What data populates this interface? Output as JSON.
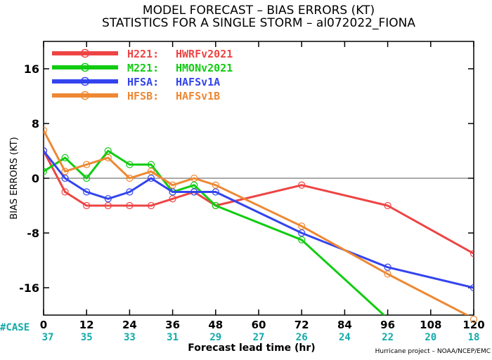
{
  "chart_data": {
    "type": "line",
    "title": "MODEL FORECAST – BIAS ERRORS (KT)",
    "subtitle": "STATISTICS FOR A SINGLE STORM – al072022_FIONA",
    "xlabel": "Forecast lead time (hr)",
    "ylabel": "BIAS ERRORS (KT)",
    "xlim": [
      0,
      120
    ],
    "ylim": [
      -20,
      20
    ],
    "xticks": [
      0,
      12,
      24,
      36,
      48,
      60,
      72,
      84,
      96,
      108,
      120
    ],
    "yticks": [
      -16,
      -8,
      0,
      8,
      16
    ],
    "grid": false,
    "zero_line": true,
    "legend_position": "top-left",
    "case_label": "#CASE",
    "case_lead_times": [
      0,
      12,
      24,
      36,
      48,
      60,
      72,
      84,
      96,
      108,
      120
    ],
    "case_counts": [
      "37",
      "35",
      "33",
      "31",
      "29",
      "27",
      "26",
      "24",
      "22",
      "20",
      "18"
    ],
    "credit": "Hurricane project – NOAA/NCEP/EMC",
    "series": [
      {
        "name": "H221:",
        "label": "HWRFv2021",
        "color": "#ee4444",
        "points": [
          [
            0,
            4
          ],
          [
            6,
            -2
          ],
          [
            12,
            -4
          ],
          [
            18,
            -4
          ],
          [
            24,
            -4
          ],
          [
            30,
            -4
          ],
          [
            36,
            -3
          ],
          [
            42,
            -2
          ],
          [
            48,
            -4
          ],
          [
            72,
            -1
          ],
          [
            96,
            -4
          ],
          [
            120,
            -11
          ]
        ]
      },
      {
        "name": "M221:",
        "label": "HMONv2021",
        "color": "#11cc11",
        "points": [
          [
            0,
            1
          ],
          [
            6,
            3
          ],
          [
            12,
            0
          ],
          [
            18,
            4
          ],
          [
            24,
            2
          ],
          [
            30,
            2
          ],
          [
            36,
            -2
          ],
          [
            42,
            -1
          ],
          [
            48,
            -4
          ],
          [
            72,
            -9
          ],
          [
            96,
            -20.5
          ]
        ]
      },
      {
        "name": "HFSA:",
        "label": "HAFSv1A",
        "color": "#3344ee",
        "points": [
          [
            0,
            4
          ],
          [
            6,
            0
          ],
          [
            12,
            -2
          ],
          [
            18,
            -3
          ],
          [
            24,
            -2
          ],
          [
            30,
            0
          ],
          [
            36,
            -2
          ],
          [
            42,
            -2
          ],
          [
            48,
            -2
          ],
          [
            72,
            -8
          ],
          [
            96,
            -13
          ],
          [
            120,
            -16
          ]
        ]
      },
      {
        "name": "HFSB:",
        "label": "HAFSv1B",
        "color": "#ee8833",
        "points": [
          [
            0,
            7
          ],
          [
            6,
            1
          ],
          [
            12,
            2
          ],
          [
            18,
            3
          ],
          [
            24,
            0
          ],
          [
            30,
            1
          ],
          [
            36,
            -1
          ],
          [
            42,
            0
          ],
          [
            48,
            -1
          ],
          [
            72,
            -7
          ],
          [
            96,
            -14
          ],
          [
            120,
            -20.5
          ]
        ]
      }
    ]
  }
}
